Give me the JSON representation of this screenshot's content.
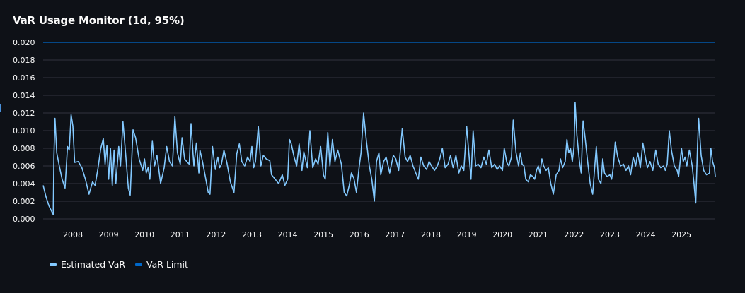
{
  "title": "VaR Usage Monitor (1d, 95%)",
  "colors": {
    "background": "#0e1117",
    "estimated_var": "#83c9ff",
    "var_limit": "#0068c9",
    "grid": "#31333f",
    "text": "#fafafa"
  },
  "legend": [
    {
      "label": "Estimated VaR",
      "color": "#83c9ff"
    },
    {
      "label": "VaR Limit",
      "color": "#0068c9"
    }
  ],
  "chart_data": {
    "type": "line",
    "title": "VaR Usage Monitor (1d, 95%)",
    "xlabel": "",
    "ylabel": "",
    "ylim": [
      0,
      0.02
    ],
    "xlim": [
      2007.17,
      2025.95
    ],
    "grid": true,
    "legend_position": "bottom-left",
    "y_ticks": [
      "0.000",
      "0.002",
      "0.004",
      "0.006",
      "0.008",
      "0.010",
      "0.012",
      "0.014",
      "0.016",
      "0.018",
      "0.020"
    ],
    "x_ticks": [
      "2008",
      "2009",
      "2010",
      "2011",
      "2012",
      "2013",
      "2014",
      "2015",
      "2016",
      "2017",
      "2018",
      "2019",
      "2020",
      "2021",
      "2022",
      "2023",
      "2024",
      "2025"
    ],
    "series": [
      {
        "name": "Estimated VaR",
        "color": "#83c9ff",
        "points": [
          [
            2007.17,
            0.0038
          ],
          [
            2007.25,
            0.0025
          ],
          [
            2007.33,
            0.0015
          ],
          [
            2007.45,
            0.0005
          ],
          [
            2007.47,
            0.007
          ],
          [
            2007.5,
            0.0114
          ],
          [
            2007.55,
            0.0075
          ],
          [
            2007.62,
            0.006
          ],
          [
            2007.7,
            0.0045
          ],
          [
            2007.78,
            0.0035
          ],
          [
            2007.85,
            0.0082
          ],
          [
            2007.9,
            0.0078
          ],
          [
            2007.95,
            0.0118
          ],
          [
            2008.0,
            0.0105
          ],
          [
            2008.05,
            0.0064
          ],
          [
            2008.15,
            0.0065
          ],
          [
            2008.25,
            0.0058
          ],
          [
            2008.35,
            0.0045
          ],
          [
            2008.45,
            0.0028
          ],
          [
            2008.55,
            0.0042
          ],
          [
            2008.62,
            0.0038
          ],
          [
            2008.7,
            0.0057
          ],
          [
            2008.78,
            0.008
          ],
          [
            2008.85,
            0.0091
          ],
          [
            2008.9,
            0.0062
          ],
          [
            2008.95,
            0.0083
          ],
          [
            2009.0,
            0.0045
          ],
          [
            2009.05,
            0.008
          ],
          [
            2009.1,
            0.0038
          ],
          [
            2009.15,
            0.0078
          ],
          [
            2009.2,
            0.004
          ],
          [
            2009.28,
            0.0082
          ],
          [
            2009.33,
            0.006
          ],
          [
            2009.4,
            0.011
          ],
          [
            2009.45,
            0.0085
          ],
          [
            2009.55,
            0.0035
          ],
          [
            2009.6,
            0.0027
          ],
          [
            2009.68,
            0.0101
          ],
          [
            2009.75,
            0.0092
          ],
          [
            2009.85,
            0.0068
          ],
          [
            2009.95,
            0.0055
          ],
          [
            2010.0,
            0.0068
          ],
          [
            2010.05,
            0.0052
          ],
          [
            2010.1,
            0.0058
          ],
          [
            2010.15,
            0.0045
          ],
          [
            2010.22,
            0.0088
          ],
          [
            2010.28,
            0.006
          ],
          [
            2010.35,
            0.0072
          ],
          [
            2010.45,
            0.004
          ],
          [
            2010.55,
            0.0058
          ],
          [
            2010.62,
            0.0082
          ],
          [
            2010.7,
            0.0065
          ],
          [
            2010.78,
            0.006
          ],
          [
            2010.85,
            0.0116
          ],
          [
            2010.92,
            0.0075
          ],
          [
            2011.0,
            0.0062
          ],
          [
            2011.05,
            0.0092
          ],
          [
            2011.12,
            0.0068
          ],
          [
            2011.18,
            0.0065
          ],
          [
            2011.25,
            0.0062
          ],
          [
            2011.3,
            0.0108
          ],
          [
            2011.38,
            0.006
          ],
          [
            2011.45,
            0.0086
          ],
          [
            2011.52,
            0.0052
          ],
          [
            2011.55,
            0.0078
          ],
          [
            2011.62,
            0.0065
          ],
          [
            2011.7,
            0.0048
          ],
          [
            2011.78,
            0.003
          ],
          [
            2011.83,
            0.0028
          ],
          [
            2011.9,
            0.0082
          ],
          [
            2011.98,
            0.0056
          ],
          [
            2012.05,
            0.007
          ],
          [
            2012.1,
            0.0058
          ],
          [
            2012.15,
            0.0062
          ],
          [
            2012.22,
            0.0078
          ],
          [
            2012.3,
            0.0064
          ],
          [
            2012.4,
            0.0042
          ],
          [
            2012.5,
            0.003
          ],
          [
            2012.58,
            0.0074
          ],
          [
            2012.65,
            0.0085
          ],
          [
            2012.72,
            0.0065
          ],
          [
            2012.8,
            0.006
          ],
          [
            2012.88,
            0.007
          ],
          [
            2012.95,
            0.0065
          ],
          [
            2013.0,
            0.0082
          ],
          [
            2013.05,
            0.0058
          ],
          [
            2013.1,
            0.0065
          ],
          [
            2013.18,
            0.0105
          ],
          [
            2013.25,
            0.006
          ],
          [
            2013.32,
            0.0072
          ],
          [
            2013.4,
            0.0068
          ],
          [
            2013.5,
            0.0066
          ],
          [
            2013.55,
            0.005
          ],
          [
            2013.65,
            0.0045
          ],
          [
            2013.75,
            0.004
          ],
          [
            2013.85,
            0.005
          ],
          [
            2013.92,
            0.0038
          ],
          [
            2014.0,
            0.0045
          ],
          [
            2014.05,
            0.009
          ],
          [
            2014.1,
            0.0085
          ],
          [
            2014.18,
            0.007
          ],
          [
            2014.25,
            0.006
          ],
          [
            2014.32,
            0.0085
          ],
          [
            2014.4,
            0.0055
          ],
          [
            2014.45,
            0.0076
          ],
          [
            2014.55,
            0.0058
          ],
          [
            2014.62,
            0.01
          ],
          [
            2014.7,
            0.0058
          ],
          [
            2014.78,
            0.0068
          ],
          [
            2014.85,
            0.0062
          ],
          [
            2014.92,
            0.0082
          ],
          [
            2015.0,
            0.005
          ],
          [
            2015.05,
            0.0045
          ],
          [
            2015.12,
            0.0098
          ],
          [
            2015.18,
            0.006
          ],
          [
            2015.25,
            0.009
          ],
          [
            2015.32,
            0.0065
          ],
          [
            2015.4,
            0.0078
          ],
          [
            2015.5,
            0.0062
          ],
          [
            2015.58,
            0.003
          ],
          [
            2015.65,
            0.0026
          ],
          [
            2015.72,
            0.0038
          ],
          [
            2015.78,
            0.0052
          ],
          [
            2015.85,
            0.0046
          ],
          [
            2015.92,
            0.003
          ],
          [
            2016.0,
            0.006
          ],
          [
            2016.05,
            0.0075
          ],
          [
            2016.12,
            0.012
          ],
          [
            2016.2,
            0.0088
          ],
          [
            2016.28,
            0.006
          ],
          [
            2016.35,
            0.0045
          ],
          [
            2016.42,
            0.002
          ],
          [
            2016.48,
            0.0065
          ],
          [
            2016.55,
            0.0075
          ],
          [
            2016.6,
            0.005
          ],
          [
            2016.68,
            0.0065
          ],
          [
            2016.75,
            0.007
          ],
          [
            2016.85,
            0.0052
          ],
          [
            2016.95,
            0.0072
          ],
          [
            2017.02,
            0.0068
          ],
          [
            2017.1,
            0.0055
          ],
          [
            2017.2,
            0.0102
          ],
          [
            2017.28,
            0.007
          ],
          [
            2017.35,
            0.0065
          ],
          [
            2017.42,
            0.0072
          ],
          [
            2017.5,
            0.006
          ],
          [
            2017.58,
            0.0052
          ],
          [
            2017.65,
            0.0045
          ],
          [
            2017.72,
            0.007
          ],
          [
            2017.8,
            0.006
          ],
          [
            2017.88,
            0.0056
          ],
          [
            2017.95,
            0.0065
          ],
          [
            2018.02,
            0.006
          ],
          [
            2018.1,
            0.0055
          ],
          [
            2018.18,
            0.006
          ],
          [
            2018.25,
            0.0068
          ],
          [
            2018.32,
            0.008
          ],
          [
            2018.4,
            0.0058
          ],
          [
            2018.48,
            0.0062
          ],
          [
            2018.55,
            0.0072
          ],
          [
            2018.62,
            0.0058
          ],
          [
            2018.7,
            0.0072
          ],
          [
            2018.78,
            0.0052
          ],
          [
            2018.85,
            0.006
          ],
          [
            2018.92,
            0.0055
          ],
          [
            2019.0,
            0.0105
          ],
          [
            2019.05,
            0.008
          ],
          [
            2019.12,
            0.0045
          ],
          [
            2019.18,
            0.01
          ],
          [
            2019.25,
            0.006
          ],
          [
            2019.32,
            0.0062
          ],
          [
            2019.4,
            0.0058
          ],
          [
            2019.48,
            0.007
          ],
          [
            2019.55,
            0.0062
          ],
          [
            2019.62,
            0.0078
          ],
          [
            2019.7,
            0.0058
          ],
          [
            2019.78,
            0.0062
          ],
          [
            2019.85,
            0.0056
          ],
          [
            2019.92,
            0.006
          ],
          [
            2020.0,
            0.0055
          ],
          [
            2020.05,
            0.008
          ],
          [
            2020.12,
            0.0064
          ],
          [
            2020.18,
            0.006
          ],
          [
            2020.25,
            0.007
          ],
          [
            2020.3,
            0.0112
          ],
          [
            2020.38,
            0.0075
          ],
          [
            2020.45,
            0.006
          ],
          [
            2020.5,
            0.0075
          ],
          [
            2020.55,
            0.0062
          ],
          [
            2020.6,
            0.006
          ],
          [
            2020.65,
            0.0045
          ],
          [
            2020.72,
            0.0042
          ],
          [
            2020.78,
            0.005
          ],
          [
            2020.85,
            0.0048
          ],
          [
            2020.9,
            0.0045
          ],
          [
            2020.95,
            0.0055
          ],
          [
            2021.0,
            0.006
          ],
          [
            2021.05,
            0.0052
          ],
          [
            2021.1,
            0.0068
          ],
          [
            2021.15,
            0.006
          ],
          [
            2021.22,
            0.0055
          ],
          [
            2021.28,
            0.0058
          ],
          [
            2021.35,
            0.004
          ],
          [
            2021.42,
            0.0028
          ],
          [
            2021.5,
            0.005
          ],
          [
            2021.58,
            0.0055
          ],
          [
            2021.62,
            0.0068
          ],
          [
            2021.68,
            0.0058
          ],
          [
            2021.75,
            0.0065
          ],
          [
            2021.8,
            0.009
          ],
          [
            2021.85,
            0.0075
          ],
          [
            2021.9,
            0.008
          ],
          [
            2021.95,
            0.0065
          ],
          [
            2022.0,
            0.0082
          ],
          [
            2022.03,
            0.0132
          ],
          [
            2022.08,
            0.0095
          ],
          [
            2022.15,
            0.0065
          ],
          [
            2022.2,
            0.0052
          ],
          [
            2022.25,
            0.0111
          ],
          [
            2022.3,
            0.0095
          ],
          [
            2022.38,
            0.0065
          ],
          [
            2022.45,
            0.004
          ],
          [
            2022.52,
            0.0028
          ],
          [
            2022.58,
            0.006
          ],
          [
            2022.62,
            0.0082
          ],
          [
            2022.68,
            0.0045
          ],
          [
            2022.75,
            0.004
          ],
          [
            2022.8,
            0.0068
          ],
          [
            2022.85,
            0.0052
          ],
          [
            2022.92,
            0.0048
          ],
          [
            2023.0,
            0.005
          ],
          [
            2023.05,
            0.0045
          ],
          [
            2023.1,
            0.006
          ],
          [
            2023.15,
            0.0087
          ],
          [
            2023.22,
            0.007
          ],
          [
            2023.3,
            0.006
          ],
          [
            2023.38,
            0.0062
          ],
          [
            2023.45,
            0.0055
          ],
          [
            2023.52,
            0.006
          ],
          [
            2023.58,
            0.005
          ],
          [
            2023.65,
            0.007
          ],
          [
            2023.72,
            0.006
          ],
          [
            2023.78,
            0.0075
          ],
          [
            2023.85,
            0.0058
          ],
          [
            2023.92,
            0.0086
          ],
          [
            2024.0,
            0.0068
          ],
          [
            2024.05,
            0.0058
          ],
          [
            2024.12,
            0.0065
          ],
          [
            2024.2,
            0.0055
          ],
          [
            2024.28,
            0.0078
          ],
          [
            2024.35,
            0.0062
          ],
          [
            2024.42,
            0.0058
          ],
          [
            2024.5,
            0.006
          ],
          [
            2024.55,
            0.0055
          ],
          [
            2024.6,
            0.0062
          ],
          [
            2024.66,
            0.01
          ],
          [
            2024.72,
            0.0078
          ],
          [
            2024.8,
            0.006
          ],
          [
            2024.88,
            0.0055
          ],
          [
            2024.92,
            0.0048
          ],
          [
            2025.0,
            0.008
          ],
          [
            2025.05,
            0.0065
          ],
          [
            2025.1,
            0.007
          ],
          [
            2025.15,
            0.006
          ],
          [
            2025.22,
            0.0078
          ],
          [
            2025.3,
            0.006
          ],
          [
            2025.35,
            0.004
          ],
          [
            2025.4,
            0.0018
          ],
          [
            2025.45,
            0.0085
          ],
          [
            2025.48,
            0.0114
          ],
          [
            2025.55,
            0.0072
          ],
          [
            2025.62,
            0.0055
          ],
          [
            2025.7,
            0.005
          ],
          [
            2025.78,
            0.0052
          ],
          [
            2025.82,
            0.008
          ],
          [
            2025.87,
            0.0065
          ],
          [
            2025.92,
            0.0058
          ],
          [
            2025.95,
            0.0048
          ]
        ]
      },
      {
        "name": "VaR Limit",
        "color": "#0068c9",
        "points": [
          [
            2007.17,
            0.02
          ],
          [
            2025.95,
            0.02
          ]
        ]
      }
    ]
  }
}
